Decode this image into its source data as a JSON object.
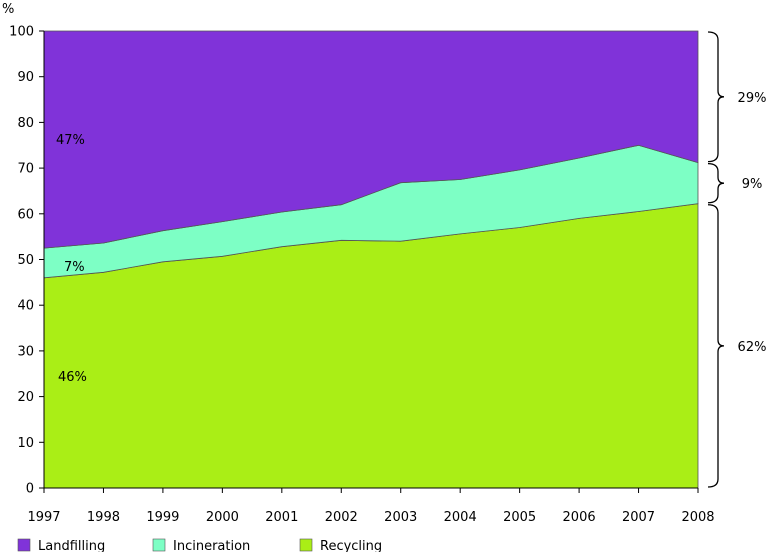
{
  "chart_data": {
    "type": "area",
    "stacked": true,
    "ylabel": "%",
    "ylim": [
      0,
      100
    ],
    "yticks": [
      0,
      10,
      20,
      30,
      40,
      50,
      60,
      70,
      80,
      90,
      100
    ],
    "x": [
      "1997",
      "1998",
      "1999",
      "2000",
      "2001",
      "2002",
      "2003",
      "2004",
      "2005",
      "2006",
      "2007",
      "2008"
    ],
    "series": [
      {
        "name": "Recycling",
        "color": "#aaee16",
        "values": [
          46.0,
          47.2,
          49.5,
          50.7,
          52.8,
          54.2,
          54.0,
          55.6,
          57.0,
          59.0,
          60.5,
          62.2
        ]
      },
      {
        "name": "Incineration",
        "color": "#7dffc5",
        "values": [
          6.5,
          6.4,
          6.8,
          7.6,
          7.6,
          7.8,
          12.8,
          11.9,
          12.6,
          13.2,
          14.5,
          9.0
        ]
      },
      {
        "name": "Landfilling",
        "color": "#8033d9",
        "values": [
          47.5,
          46.4,
          43.7,
          41.7,
          39.6,
          38.0,
          33.2,
          32.5,
          30.4,
          27.8,
          25.0,
          28.8
        ]
      }
    ],
    "annotations": {
      "landfilling_start": "47%",
      "incineration_start": "7%",
      "recycling_start": "46%"
    },
    "brackets": [
      {
        "label": "29%",
        "from": 71.2,
        "to": 100
      },
      {
        "label": "9%",
        "from": 62.2,
        "to": 71.2
      },
      {
        "label": "62%",
        "from": 0,
        "to": 62.2
      }
    ],
    "legend": [
      "Landfilling",
      "Incineration",
      "Recycling"
    ],
    "legend_position": "bottom"
  }
}
